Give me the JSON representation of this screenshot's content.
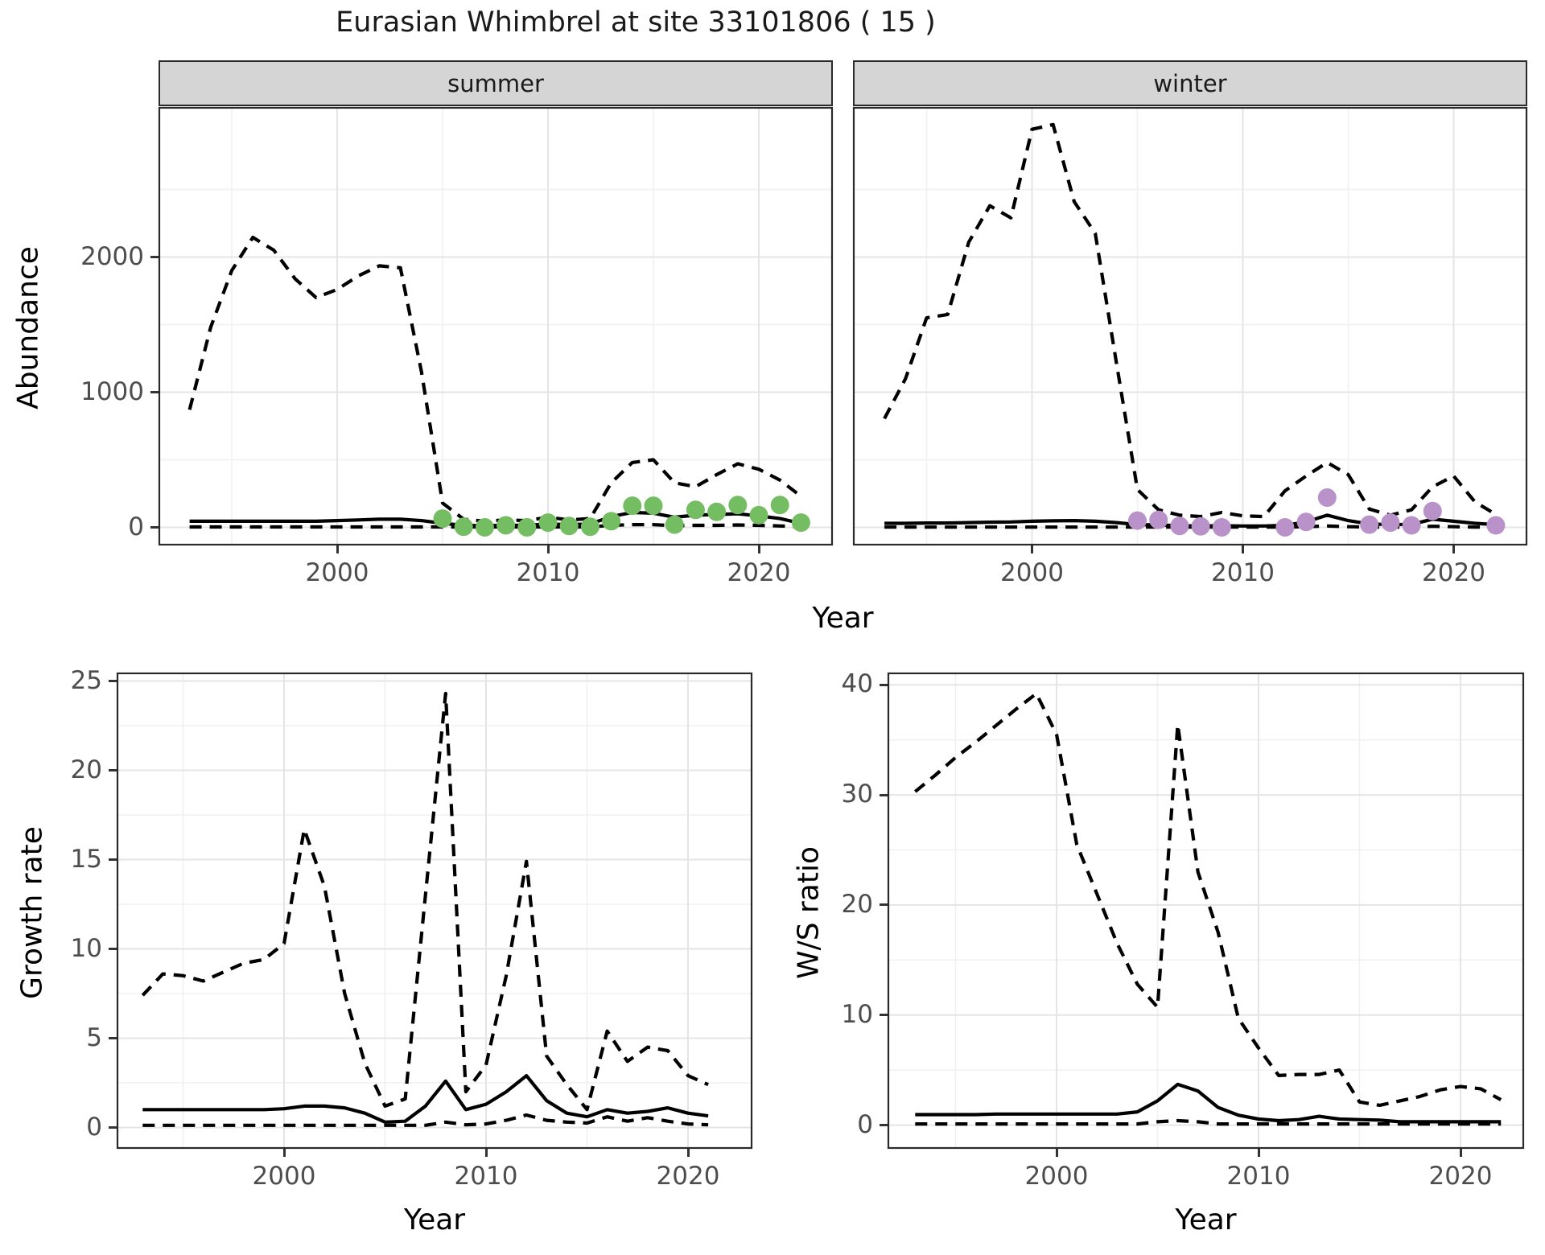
{
  "title": "Eurasian Whimbrel at site 33101806 ( 15 )",
  "colors": {
    "summer_points": "#74bd62",
    "winter_points": "#b892c8",
    "line": "#000000",
    "grid_major": "#e5e5e5",
    "grid_minor": "#f0f0f0",
    "strip_fill": "#d5d5d5",
    "panel_border": "#2a2a2a",
    "tick_text": "#4d4d4d"
  },
  "facets": {
    "summer_label": "summer",
    "winter_label": "winter"
  },
  "axis_titles": {
    "abundance": "Abundance",
    "year_top": "Year",
    "growth": "Growth rate",
    "ws": "W/S ratio",
    "year_bottom_left": "Year",
    "year_bottom_right": "Year"
  },
  "chart_data": [
    {
      "id": "abundance_summer",
      "type": "line",
      "facet": "summer",
      "xlabel": "Year",
      "ylabel": "Abundance",
      "x_ticks": [
        2000,
        2010,
        2020
      ],
      "y_ticks": [
        0,
        1000,
        2000
      ],
      "x_minor": [
        1995,
        2005,
        2015
      ],
      "y_minor": [
        500,
        1500,
        2500
      ],
      "show_y_labels": true,
      "years": [
        1993,
        1994,
        1995,
        1996,
        1997,
        1998,
        1999,
        2000,
        2001,
        2002,
        2003,
        2004,
        2005,
        2006,
        2007,
        2008,
        2009,
        2010,
        2011,
        2012,
        2013,
        2014,
        2015,
        2016,
        2017,
        2018,
        2019,
        2020,
        2021,
        2022
      ],
      "series": [
        {
          "name": "upper_ci",
          "style": "dashed",
          "values": [
            870,
            1480,
            1900,
            2145,
            2050,
            1840,
            1700,
            1760,
            1860,
            1935,
            1920,
            1150,
            180,
            60,
            45,
            55,
            50,
            75,
            55,
            65,
            330,
            480,
            500,
            330,
            300,
            390,
            470,
            430,
            350,
            230
          ]
        },
        {
          "name": "mean",
          "style": "solid",
          "values": [
            45,
            45,
            45,
            45,
            45,
            45,
            45,
            50,
            55,
            60,
            60,
            50,
            30,
            15,
            12,
            15,
            15,
            25,
            20,
            25,
            80,
            110,
            105,
            75,
            90,
            95,
            100,
            85,
            65,
            30
          ]
        },
        {
          "name": "lower_ci",
          "style": "dashed",
          "values": [
            3,
            3,
            3,
            3,
            3,
            3,
            3,
            3,
            3,
            3,
            3,
            3,
            3,
            3,
            3,
            3,
            3,
            3,
            3,
            3,
            15,
            20,
            20,
            12,
            15,
            15,
            18,
            15,
            10,
            5
          ]
        }
      ],
      "points": {
        "color_key": "summer_points",
        "years": [
          2005,
          2006,
          2007,
          2008,
          2009,
          2010,
          2011,
          2012,
          2013,
          2014,
          2015,
          2016,
          2017,
          2018,
          2019,
          2020,
          2021,
          2022
        ],
        "values": [
          65,
          5,
          0,
          15,
          0,
          35,
          10,
          5,
          45,
          160,
          160,
          20,
          130,
          115,
          165,
          90,
          165,
          35
        ]
      }
    },
    {
      "id": "abundance_winter",
      "type": "line",
      "facet": "winter",
      "xlabel": "Year",
      "ylabel": "Abundance",
      "x_ticks": [
        2000,
        2010,
        2020
      ],
      "y_ticks": [
        0,
        1000,
        2000
      ],
      "x_minor": [
        1995,
        2005,
        2015
      ],
      "y_minor": [
        500,
        1500,
        2500
      ],
      "show_y_labels": false,
      "years": [
        1993,
        1994,
        1995,
        1996,
        1997,
        1998,
        1999,
        2000,
        2001,
        2002,
        2003,
        2004,
        2005,
        2006,
        2007,
        2008,
        2009,
        2010,
        2011,
        2012,
        2013,
        2014,
        2015,
        2016,
        2017,
        2018,
        2019,
        2020,
        2021,
        2022
      ],
      "series": [
        {
          "name": "upper_ci",
          "style": "dashed",
          "values": [
            805,
            1100,
            1550,
            1575,
            2110,
            2380,
            2290,
            2945,
            2980,
            2410,
            2175,
            1220,
            280,
            130,
            90,
            80,
            110,
            85,
            80,
            270,
            380,
            480,
            390,
            135,
            90,
            130,
            300,
            380,
            190,
            95
          ]
        },
        {
          "name": "mean",
          "style": "solid",
          "values": [
            30,
            30,
            32,
            32,
            35,
            38,
            40,
            45,
            48,
            50,
            45,
            35,
            20,
            18,
            12,
            10,
            12,
            10,
            10,
            15,
            40,
            90,
            50,
            25,
            20,
            22,
            60,
            45,
            30,
            20
          ]
        },
        {
          "name": "lower_ci",
          "style": "dashed",
          "values": [
            2,
            2,
            2,
            2,
            2,
            2,
            2,
            2,
            2,
            2,
            2,
            2,
            2,
            2,
            2,
            2,
            2,
            2,
            2,
            2,
            5,
            10,
            5,
            2,
            2,
            2,
            8,
            5,
            2,
            2
          ]
        }
      ],
      "points": {
        "color_key": "winter_points",
        "years": [
          2005,
          2006,
          2007,
          2008,
          2009,
          2012,
          2013,
          2014,
          2016,
          2017,
          2018,
          2019,
          2022
        ],
        "values": [
          50,
          55,
          10,
          8,
          0,
          0,
          40,
          220,
          20,
          35,
          15,
          120,
          15
        ]
      }
    },
    {
      "id": "growth_rate",
      "type": "line",
      "xlabel": "Year",
      "ylabel": "Growth rate",
      "x_ticks": [
        2000,
        2010,
        2020
      ],
      "y_ticks": [
        0,
        5,
        10,
        15,
        20,
        25
      ],
      "x_minor": [
        1995,
        2005,
        2015
      ],
      "y_minor": [
        2.5,
        7.5,
        12.5,
        17.5,
        22.5
      ],
      "show_y_labels": true,
      "years": [
        1993,
        1994,
        1995,
        1996,
        1997,
        1998,
        1999,
        2000,
        2001,
        2002,
        2003,
        2004,
        2005,
        2006,
        2007,
        2008,
        2009,
        2010,
        2011,
        2012,
        2013,
        2014,
        2015,
        2016,
        2017,
        2018,
        2019,
        2020,
        2021
      ],
      "series": [
        {
          "name": "upper_ci",
          "style": "dashed",
          "values": [
            7.4,
            8.6,
            8.5,
            8.2,
            8.7,
            9.2,
            9.4,
            10.3,
            16.7,
            13.5,
            7.5,
            3.6,
            1.2,
            1.6,
            13.0,
            24.3,
            2.0,
            3.5,
            8.5,
            14.9,
            4.0,
            2.4,
            1.0,
            5.4,
            3.7,
            4.5,
            4.3,
            2.9,
            2.4
          ]
        },
        {
          "name": "mean",
          "style": "solid",
          "values": [
            1.0,
            1.0,
            1.0,
            1.0,
            1.0,
            1.0,
            1.0,
            1.05,
            1.2,
            1.2,
            1.1,
            0.8,
            0.3,
            0.35,
            1.2,
            2.6,
            1.0,
            1.3,
            2.0,
            2.9,
            1.5,
            0.8,
            0.6,
            1.0,
            0.8,
            0.9,
            1.1,
            0.8,
            0.65
          ]
        },
        {
          "name": "lower_ci",
          "style": "dashed",
          "values": [
            0.12,
            0.12,
            0.12,
            0.12,
            0.12,
            0.12,
            0.12,
            0.12,
            0.12,
            0.12,
            0.12,
            0.12,
            0.12,
            0.12,
            0.12,
            0.3,
            0.15,
            0.2,
            0.4,
            0.7,
            0.4,
            0.3,
            0.25,
            0.6,
            0.35,
            0.55,
            0.35,
            0.2,
            0.15
          ]
        }
      ]
    },
    {
      "id": "ws_ratio",
      "type": "line",
      "xlabel": "Year",
      "ylabel": "W/S ratio",
      "x_ticks": [
        2000,
        2010,
        2020
      ],
      "y_ticks": [
        0,
        10,
        20,
        30,
        40
      ],
      "x_minor": [
        1995,
        2005,
        2015
      ],
      "y_minor": [
        5,
        15,
        25,
        35
      ],
      "show_y_labels": true,
      "years": [
        1993,
        1994,
        1995,
        1996,
        1997,
        1998,
        1999,
        2000,
        2001,
        2002,
        2003,
        2004,
        2005,
        2006,
        2007,
        2008,
        2009,
        2010,
        2011,
        2012,
        2013,
        2014,
        2015,
        2016,
        2017,
        2018,
        2019,
        2020,
        2021,
        2022
      ],
      "series": [
        {
          "name": "upper_ci",
          "style": "dashed",
          "values": [
            30.3,
            31.8,
            33.4,
            34.8,
            36.3,
            37.8,
            39.2,
            35.5,
            25.5,
            21.0,
            16.5,
            12.8,
            10.7,
            36.4,
            23.0,
            17.5,
            9.7,
            7.0,
            4.5,
            4.6,
            4.6,
            5.0,
            2.1,
            1.8,
            2.2,
            2.6,
            3.2,
            3.5,
            3.3,
            2.3
          ]
        },
        {
          "name": "mean",
          "style": "solid",
          "values": [
            0.95,
            0.95,
            0.95,
            0.95,
            1.0,
            1.0,
            1.0,
            1.0,
            1.0,
            1.0,
            1.0,
            1.2,
            2.2,
            3.7,
            3.1,
            1.6,
            0.9,
            0.55,
            0.4,
            0.5,
            0.8,
            0.55,
            0.5,
            0.45,
            0.3,
            0.3,
            0.3,
            0.3,
            0.3,
            0.3
          ]
        },
        {
          "name": "lower_ci",
          "style": "dashed",
          "values": [
            0.1,
            0.1,
            0.1,
            0.1,
            0.1,
            0.1,
            0.1,
            0.1,
            0.1,
            0.1,
            0.1,
            0.1,
            0.3,
            0.4,
            0.3,
            0.1,
            0.1,
            0.1,
            0.1,
            0.1,
            0.1,
            0.1,
            0.1,
            0.1,
            0.1,
            0.1,
            0.1,
            0.1,
            0.1,
            0.1
          ]
        }
      ]
    }
  ]
}
